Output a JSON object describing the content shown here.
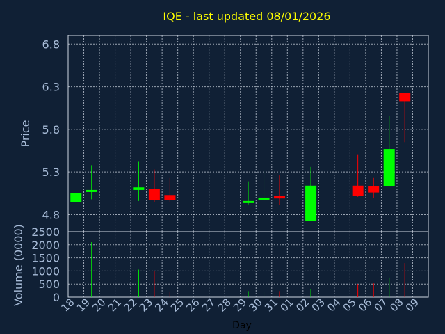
{
  "chart_data": {
    "type": "candlestick",
    "title": "IQE - last updated 08/01/2026",
    "xlabel": "Day",
    "price_panel": {
      "ylabel": "Price",
      "yticks": [
        "4.8",
        "5.3",
        "5.8",
        "6.3",
        "6.8"
      ],
      "ylim": [
        4.6,
        6.9
      ],
      "grid": true
    },
    "volume_panel": {
      "ylabel": "Volume (0000)",
      "yticks": [
        "0",
        "500",
        "1000",
        "1500",
        "2000",
        "2500"
      ],
      "ylim": [
        0,
        2500
      ],
      "grid": true
    },
    "x_tick_labels": [
      "18",
      "19",
      "20",
      "21",
      "22",
      "23",
      "24",
      "25",
      "26",
      "27",
      "28",
      "29",
      "30",
      "31",
      "01",
      "02",
      "03",
      "04",
      "05",
      "06",
      "07",
      "08",
      "09"
    ],
    "colors": {
      "up": "#00ff00",
      "down": "#ff0000",
      "title": "#ffff00",
      "axis_text": "#a8bcd8",
      "grid": "#c8d0dc",
      "background": "#102035"
    },
    "candles": [
      {
        "day": "18",
        "open": 4.95,
        "high": 5.05,
        "low": 4.95,
        "close": 5.05,
        "volume": 0
      },
      {
        "day": "19",
        "open": 5.07,
        "high": 5.38,
        "low": 4.98,
        "close": 5.09,
        "volume": 2100
      },
      {
        "day": "22",
        "open": 5.09,
        "high": 5.42,
        "low": 4.96,
        "close": 5.12,
        "volume": 1050
      },
      {
        "day": "23",
        "open": 5.1,
        "high": 5.33,
        "low": 4.95,
        "close": 4.97,
        "volume": 1000
      },
      {
        "day": "24",
        "open": 5.03,
        "high": 5.23,
        "low": 4.95,
        "close": 4.97,
        "volume": 200
      },
      {
        "day": "29",
        "open": 4.95,
        "high": 5.19,
        "low": 4.92,
        "close": 4.96,
        "volume": 230
      },
      {
        "day": "30",
        "open": 4.98,
        "high": 5.32,
        "low": 4.96,
        "close": 5.0,
        "volume": 200
      },
      {
        "day": "31",
        "open": 5.02,
        "high": 5.26,
        "low": 4.91,
        "close": 4.99,
        "volume": 230
      },
      {
        "day": "02",
        "open": 4.73,
        "high": 5.36,
        "low": 4.73,
        "close": 5.14,
        "volume": 300
      },
      {
        "day": "05",
        "open": 5.14,
        "high": 5.5,
        "low": 5.01,
        "close": 5.02,
        "volume": 500
      },
      {
        "day": "06",
        "open": 5.13,
        "high": 5.23,
        "low": 5.0,
        "close": 5.06,
        "volume": 530
      },
      {
        "day": "07",
        "open": 5.13,
        "high": 5.96,
        "low": 5.13,
        "close": 5.57,
        "volume": 750
      },
      {
        "day": "08",
        "open": 6.23,
        "high": 6.23,
        "low": 5.65,
        "close": 6.13,
        "volume": 1300
      }
    ]
  }
}
